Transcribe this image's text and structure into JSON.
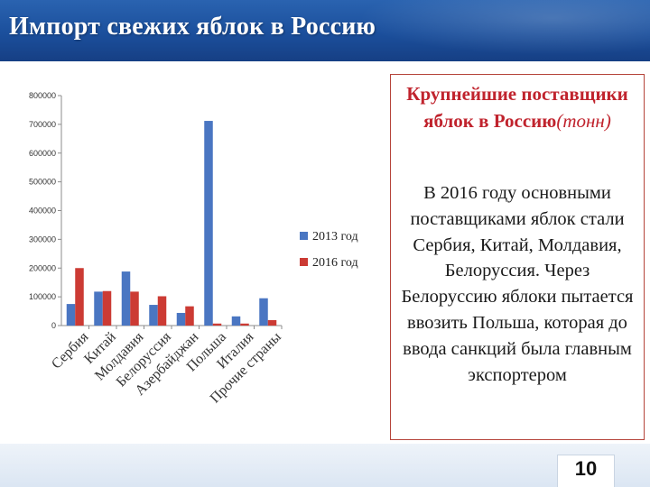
{
  "slide": {
    "title": "Импорт свежих яблок в Россию",
    "page_number": "10"
  },
  "side_panel": {
    "heading_main": "Крупнейшие поставщики яблок в Россию",
    "heading_unit": "(тонн)",
    "body": "В 2016 году основными поставщиками яблок стали Сербия, Китай, Молдавия, Белоруссия. Через Белоруссию яблоки пытается ввозить Польша, которая до ввода санкций была главным экспортером"
  },
  "chart_data": {
    "type": "bar",
    "categories": [
      "Сербия",
      "Китай",
      "Молдавия",
      "Белоруссия",
      "Азербайджан",
      "Польша",
      "Италия",
      "Прочие страны"
    ],
    "series": [
      {
        "name": "2013 год",
        "color": "#4a76c2",
        "values": [
          75000,
          118000,
          188000,
          72000,
          44000,
          712000,
          32000,
          95000
        ]
      },
      {
        "name": "2016 год",
        "color": "#cc3b34",
        "values": [
          200000,
          120000,
          118000,
          102000,
          67000,
          7000,
          7000,
          19000
        ]
      }
    ],
    "yticks": [
      "0",
      "100000",
      "200000",
      "300000",
      "400000",
      "500000",
      "600000",
      "700000",
      "800000"
    ],
    "ylim": [
      0,
      800000
    ],
    "grid": false,
    "legend": "right",
    "title": "",
    "xlabel": "",
    "ylabel": ""
  }
}
